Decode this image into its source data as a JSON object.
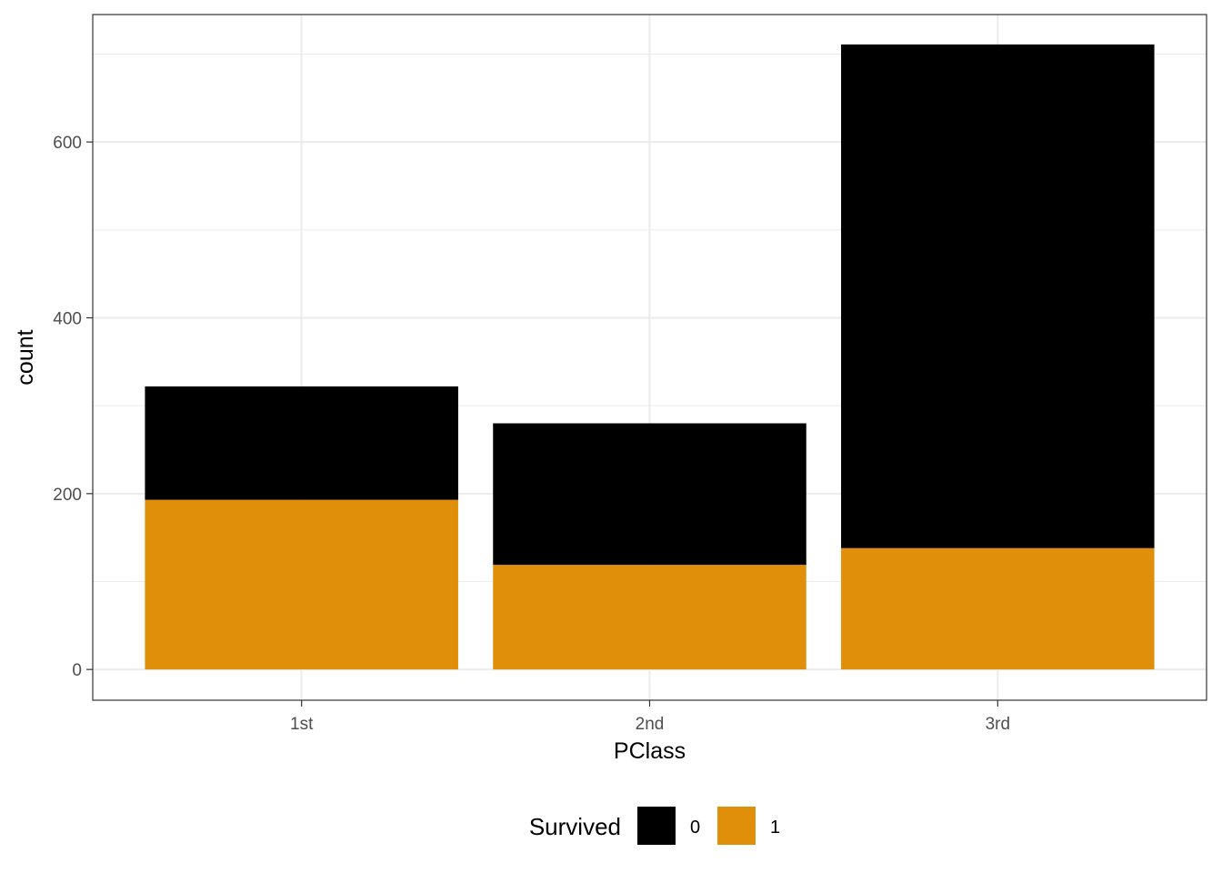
{
  "chart_data": {
    "type": "bar",
    "stacked": true,
    "categories": [
      "1st",
      "2nd",
      "3rd"
    ],
    "series": [
      {
        "name": "0",
        "values": [
          129,
          161,
          573
        ],
        "color": "#000000"
      },
      {
        "name": "1",
        "values": [
          193,
          119,
          138
        ],
        "color": "#E08F0B"
      }
    ],
    "xlabel": "PClass",
    "ylabel": "count",
    "ylim": [
      -35,
      745
    ],
    "yticks": [
      0,
      200,
      400,
      600
    ],
    "ytick_labels": [
      "0",
      "200",
      "400",
      "600"
    ],
    "grid": true,
    "legend": {
      "title": "Survived",
      "position": "bottom"
    }
  }
}
